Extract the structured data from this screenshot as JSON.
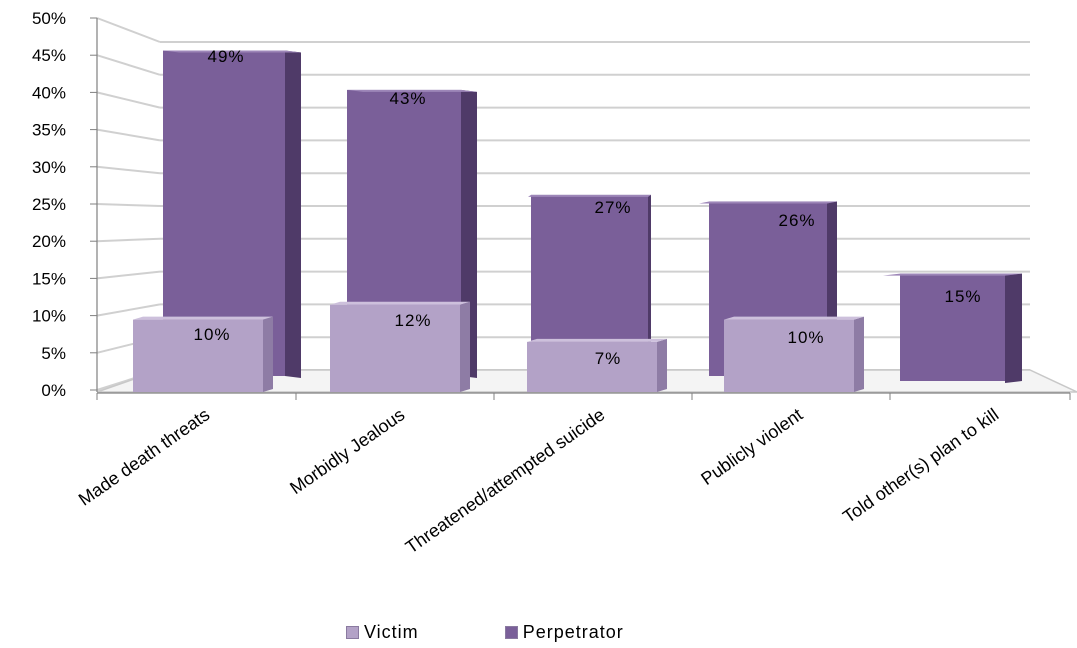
{
  "chart_data": {
    "type": "bar",
    "style": "3d-clustered",
    "categories": [
      "Made death threats",
      "Morbidly Jealous",
      "Threatened/attempted suicide",
      "Publicly violent",
      "Told other(s) plan to kill"
    ],
    "series": [
      {
        "name": "Victim",
        "values": [
          10,
          12,
          7,
          10,
          null
        ],
        "data_labels": [
          "10%",
          "12%",
          "7%",
          "10%",
          ""
        ]
      },
      {
        "name": "Perpetrator",
        "values": [
          49,
          43,
          27,
          26,
          15
        ],
        "data_labels": [
          "49%",
          "43%",
          "27%",
          "26%",
          "15%"
        ]
      }
    ],
    "ylim": [
      0,
      50
    ],
    "yticks": [
      "0%",
      "5%",
      "10%",
      "15%",
      "20%",
      "25%",
      "30%",
      "35%",
      "40%",
      "45%",
      "50%"
    ],
    "ytick_values": [
      0,
      5,
      10,
      15,
      20,
      25,
      30,
      35,
      40,
      45,
      50
    ],
    "grid": true,
    "legend_position": "bottom",
    "colors": {
      "victim_front": "#b3a2c7",
      "victim_side": "#8e7ca5",
      "victim_top": "#cdc0dc",
      "perp_front": "#7a5f99",
      "perp_side": "#4f3a68",
      "perp_top": "#9d86b8",
      "grid": "#d0d0d0",
      "axis": "#808080"
    }
  }
}
